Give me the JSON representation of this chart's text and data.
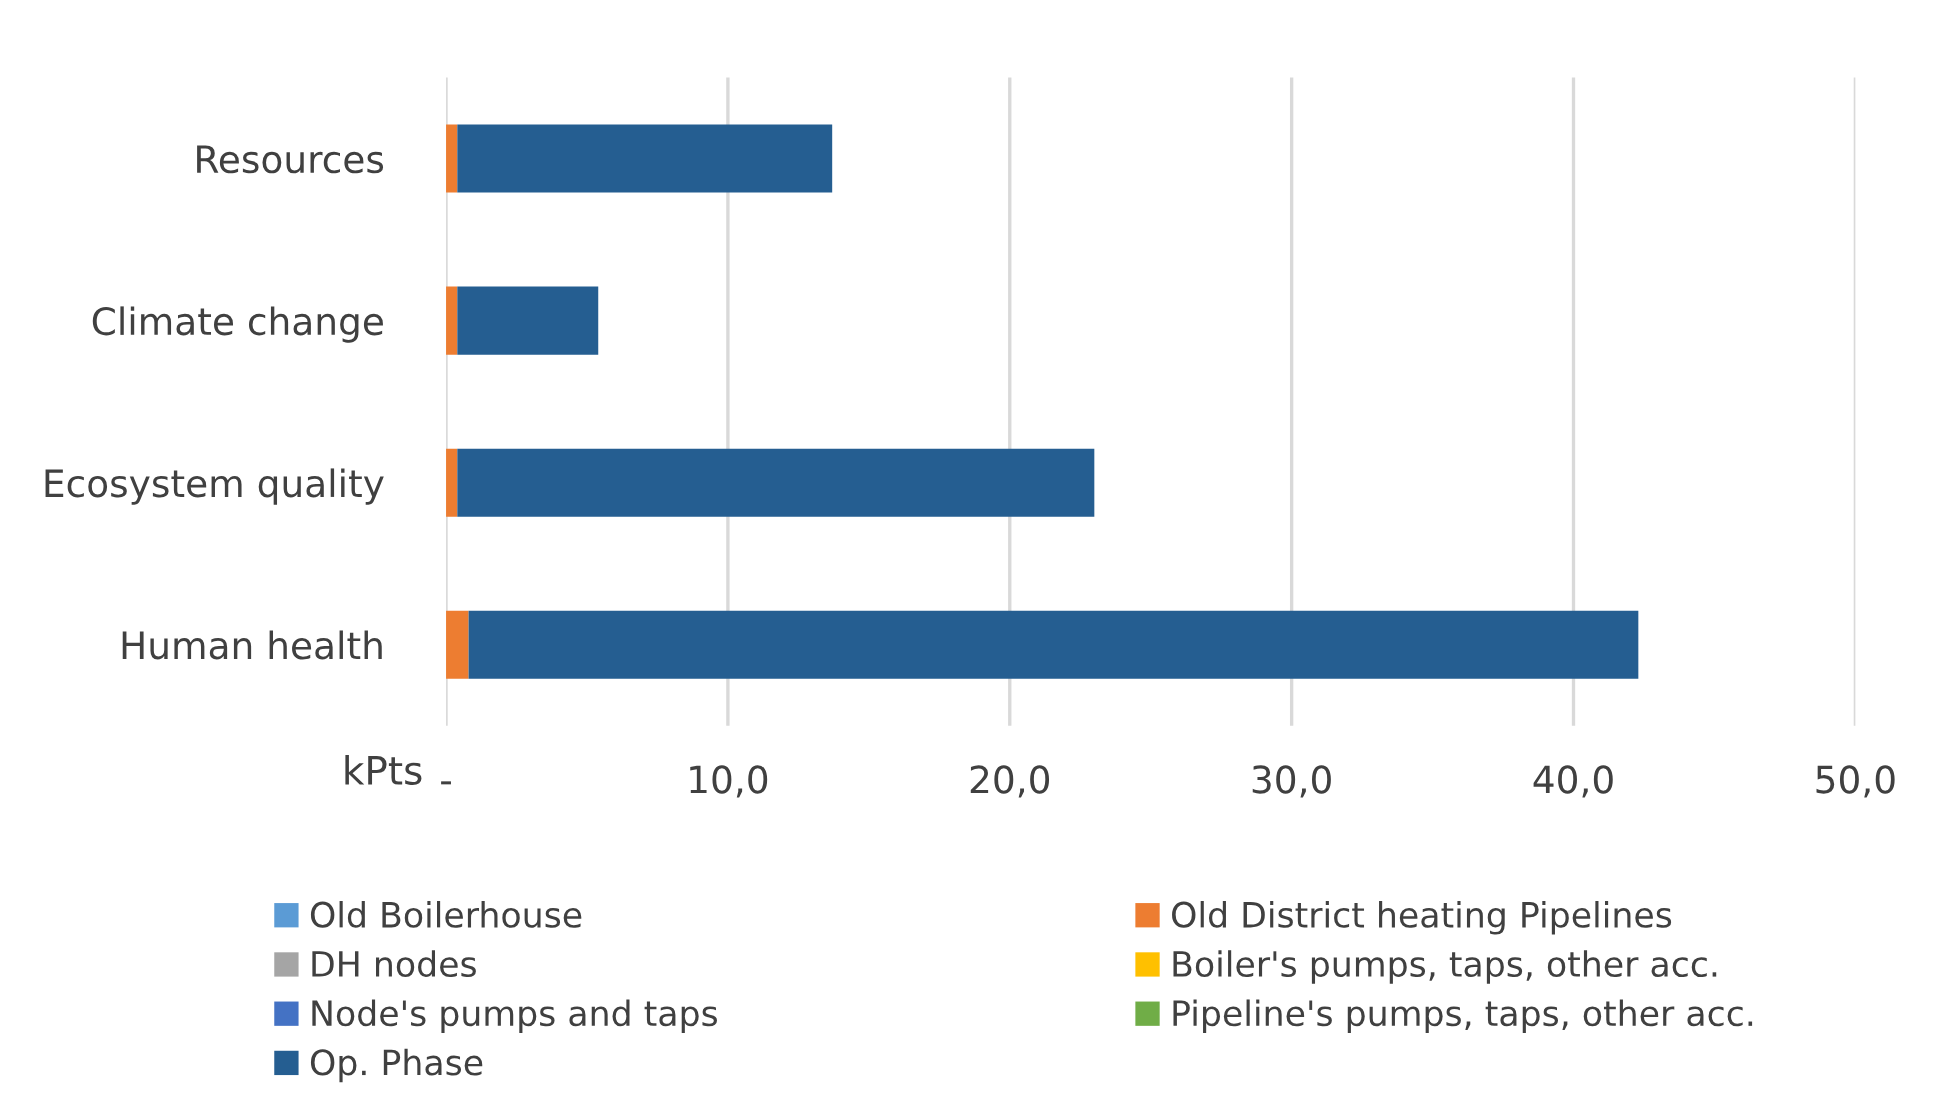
{
  "chart_data": {
    "type": "bar",
    "orientation": "horizontal",
    "stacked": true,
    "categories": [
      "Resources",
      "Climate change",
      "Ecosystem quality",
      "Human health"
    ],
    "series": [
      {
        "name": "Old Boilerhouse",
        "color": "#5b9bd5",
        "values": [
          0,
          0,
          0,
          0
        ]
      },
      {
        "name": "Old District heating Pipelines",
        "color": "#ed7d31",
        "values": [
          0.4,
          0.4,
          0.4,
          0.8
        ]
      },
      {
        "name": "DH nodes",
        "color": "#a5a5a5",
        "values": [
          0,
          0,
          0,
          0
        ]
      },
      {
        "name": "Boiler's pumps, taps, other acc.",
        "color": "#ffc000",
        "values": [
          0,
          0,
          0,
          0
        ]
      },
      {
        "name": "Node's pumps and taps",
        "color": "#4472c4",
        "values": [
          0,
          0,
          0,
          0
        ]
      },
      {
        "name": "Pipeline's pumps, taps, other acc.",
        "color": "#70ad47",
        "values": [
          0,
          0,
          0,
          0
        ]
      },
      {
        "name": "Op. Phase",
        "color": "#255e91",
        "values": [
          13.3,
          5.0,
          22.6,
          41.5
        ]
      }
    ],
    "xlabel": "kPts",
    "xlim": [
      0,
      50
    ],
    "xticks": [
      {
        "value": 0,
        "label": "-"
      },
      {
        "value": 10,
        "label": "10,0"
      },
      {
        "value": 20,
        "label": "20,0"
      },
      {
        "value": 30,
        "label": "30,0"
      },
      {
        "value": 40,
        "label": "40,0"
      },
      {
        "value": 50,
        "label": "50,0"
      }
    ],
    "grid": "x",
    "legend": "bottom"
  }
}
